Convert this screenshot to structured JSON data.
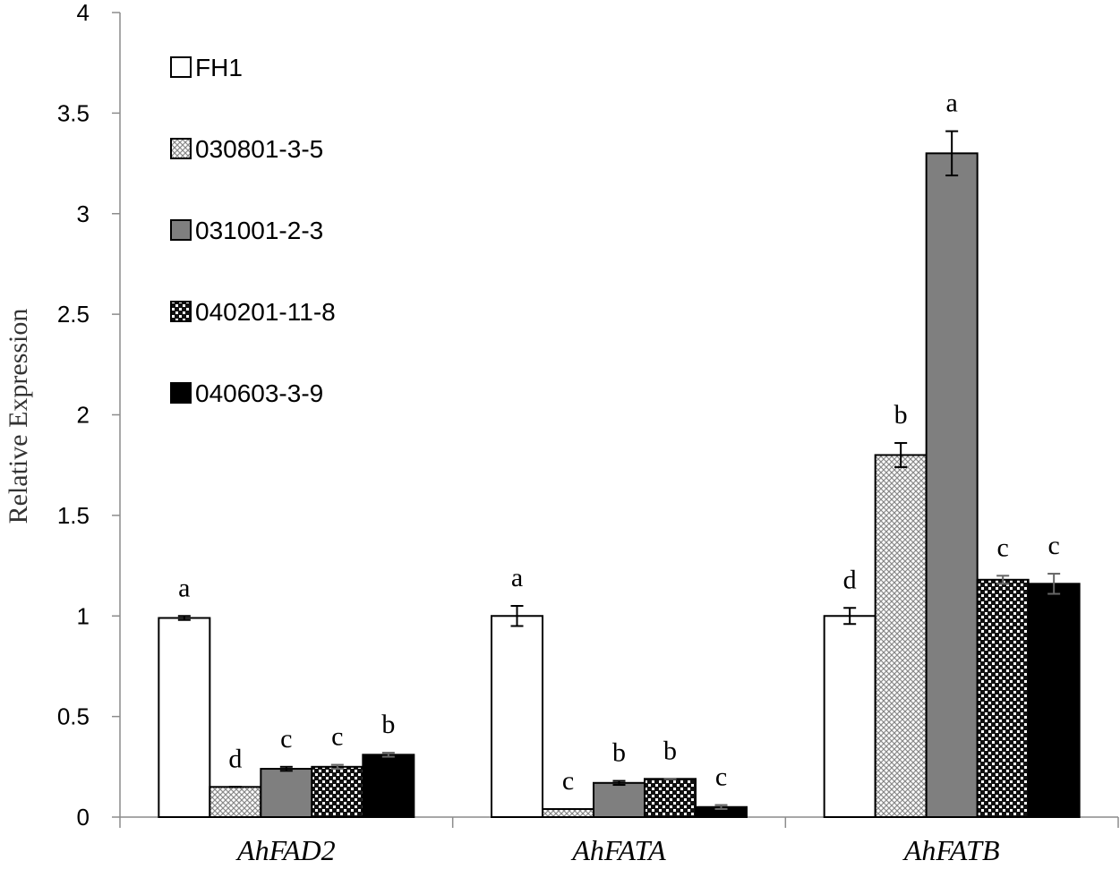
{
  "chart_data": {
    "type": "bar",
    "title": "",
    "xlabel": "",
    "ylabel": "Relative Expression",
    "ylim": [
      0,
      4
    ],
    "yticks": [
      "0",
      "0.5",
      "1",
      "1.5",
      "2",
      "2.5",
      "3",
      "3.5",
      "4"
    ],
    "categories": [
      "AhFAD2",
      "AhFATA",
      "AhFATB"
    ],
    "legend_position": "top-left",
    "grid": false,
    "series": [
      {
        "name": "FH1",
        "pattern": "white",
        "values": [
          0.99,
          1.0,
          1.0
        ],
        "errors": [
          0.01,
          0.05,
          0.04
        ],
        "labels": [
          "a",
          "a",
          "d"
        ]
      },
      {
        "name": "030801-3-5",
        "pattern": "crosshatch",
        "values": [
          0.15,
          0.04,
          1.8
        ],
        "errors": [
          0.0,
          0.0,
          0.06
        ],
        "labels": [
          "d",
          "c",
          "b"
        ]
      },
      {
        "name": "031001-2-3",
        "pattern": "gray",
        "values": [
          0.24,
          0.17,
          3.3
        ],
        "errors": [
          0.01,
          0.01,
          0.11
        ],
        "labels": [
          "c",
          "b",
          "a"
        ]
      },
      {
        "name": "040201-11-8",
        "pattern": "checker",
        "values": [
          0.25,
          0.19,
          1.18
        ],
        "errors": [
          0.01,
          0.0,
          0.02
        ],
        "labels": [
          "c",
          "b",
          "c"
        ]
      },
      {
        "name": "040603-3-9",
        "pattern": "black",
        "values": [
          0.31,
          0.05,
          1.16
        ],
        "errors": [
          0.01,
          0.01,
          0.05
        ],
        "labels": [
          "b",
          "c",
          "c"
        ]
      }
    ]
  }
}
